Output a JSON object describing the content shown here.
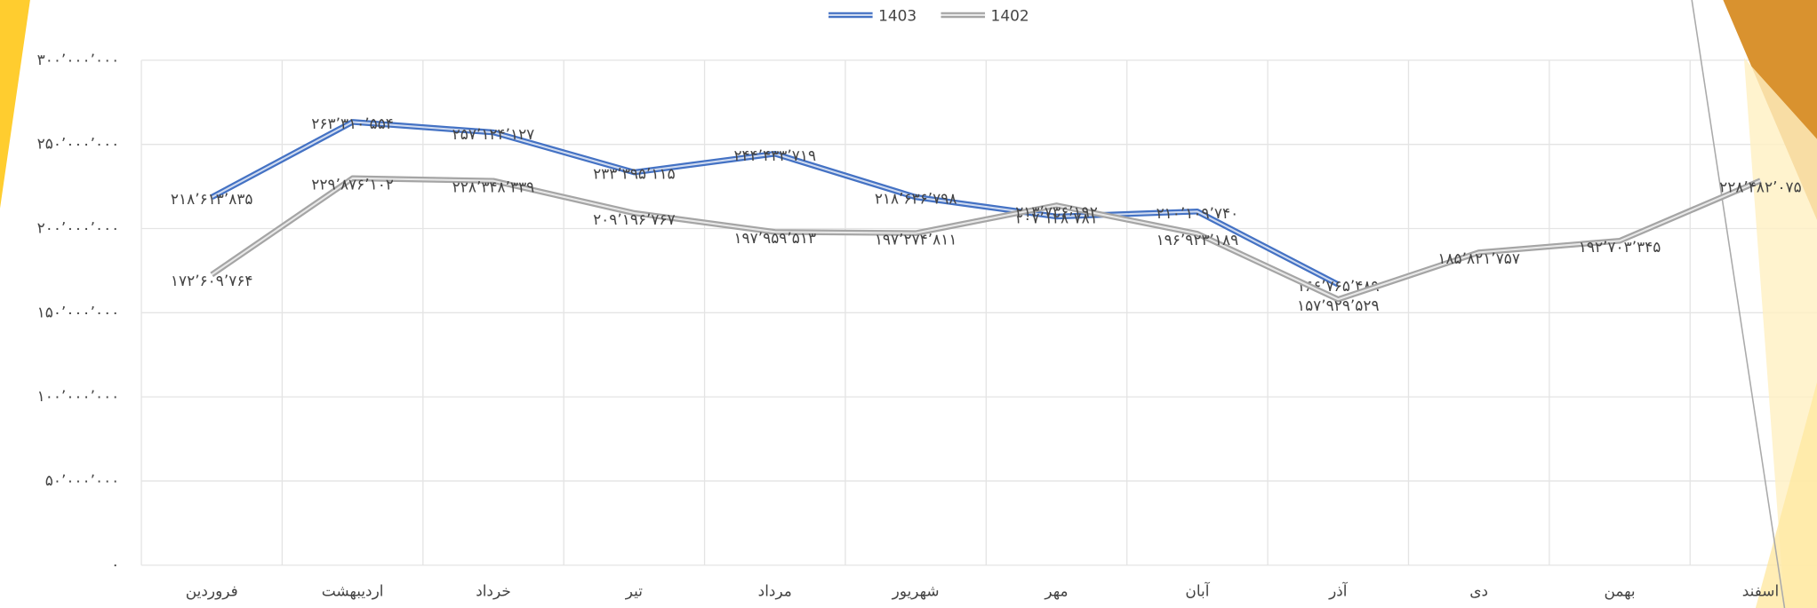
{
  "chart_data": {
    "type": "line",
    "categories": [
      "فروردین",
      "اردیبهشت",
      "خرداد",
      "تیر",
      "مرداد",
      "شهریور",
      "مهر",
      "آبان",
      "آذر",
      "دی",
      "بهمن",
      "اسفند"
    ],
    "series": [
      {
        "name": "1403",
        "color": "#4472c4",
        "values": [
          218613835,
          263310554,
          257124127,
          233395115,
          244433719,
          218636798,
          207128781,
          210109740,
          166765489,
          null,
          null,
          null
        ],
        "value_labels": [
          "۲۱۸٬۶۱۳٬۸۳۵",
          "۲۶۳٬۳۱۰٬۵۵۴",
          "۲۵۷٬۱۲۴٬۱۲۷",
          "۲۳۳٬۳۹۵٬۱۱۵",
          "۲۴۴٬۴۳۳٬۷۱۹",
          "۲۱۸٬۶۳۶٬۷۹۸",
          "۲۰۷٬۱۲۸٬۷۸۱",
          "۲۱۰٬۱۰۹٬۷۴۰",
          "۱۶۶٬۷۶۵٬۴۸۹",
          null,
          null,
          null
        ]
      },
      {
        "name": "1402",
        "color": "#a5a5a5",
        "values": [
          172609764,
          229876102,
          228348339,
          209196767,
          197959513,
          197274811,
          213736192,
          196923189,
          157929529,
          185821757,
          192703345,
          228482075
        ],
        "value_labels": [
          "۱۷۲٬۶۰۹٬۷۶۴",
          "۲۲۹٬۸۷۶٬۱۰۲",
          "۲۲۸٬۳۴۸٬۳۳۹",
          "۲۰۹٬۱۹۶٬۷۶۷",
          "۱۹۷٬۹۵۹٬۵۱۳",
          "۱۹۷٬۲۷۴٬۸۱۱",
          "۲۱۳٬۷۳۶٬۱۹۲",
          "۱۹۶٬۹۲۳٬۱۸۹",
          "۱۵۷٬۹۲۹٬۵۲۹",
          "۱۸۵٬۸۲۱٬۷۵۷",
          "۱۹۲٬۷۰۳٬۳۴۵",
          "۲۲۸٬۴۸۲٬۰۷۵"
        ]
      }
    ],
    "ylim": [
      0,
      300000000
    ],
    "yticks": [
      {
        "value": 0,
        "label": "۰"
      },
      {
        "value": 50000000,
        "label": "۵۰٬۰۰۰٬۰۰۰"
      },
      {
        "value": 100000000,
        "label": "۱۰۰٬۰۰۰٬۰۰۰"
      },
      {
        "value": 150000000,
        "label": "۱۵۰٬۰۰۰٬۰۰۰"
      },
      {
        "value": 200000000,
        "label": "۲۰۰٬۰۰۰٬۰۰۰"
      },
      {
        "value": 250000000,
        "label": "۲۵۰٬۰۰۰٬۰۰۰"
      },
      {
        "value": 300000000,
        "label": "۳۰۰٬۰۰۰٬۰۰۰"
      }
    ],
    "grid": true,
    "legend": "top"
  }
}
